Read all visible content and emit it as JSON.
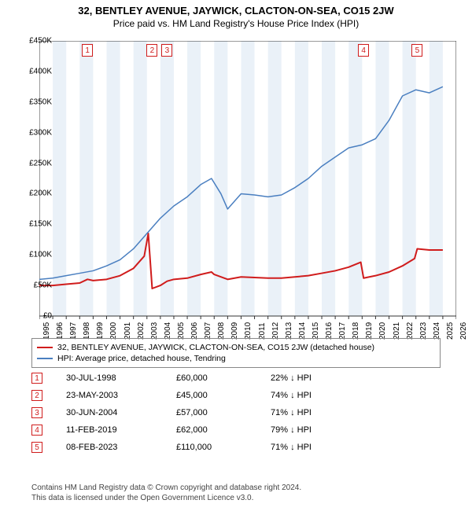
{
  "title": "32, BENTLEY AVENUE, JAYWICK, CLACTON-ON-SEA, CO15 2JW",
  "subtitle": "Price paid vs. HM Land Registry's House Price Index (HPI)",
  "chart": {
    "type": "line",
    "background_color": "#ffffff",
    "band_color": "#eaf1f8",
    "grid_color": "#f0f0f0",
    "axis_color": "#333333",
    "xlim": [
      1995,
      2026
    ],
    "ylim": [
      0,
      450000
    ],
    "ytick_step": 50000,
    "ytick_labels": [
      "£0",
      "£50K",
      "£100K",
      "£150K",
      "£200K",
      "£250K",
      "£300K",
      "£350K",
      "£400K",
      "£450K"
    ],
    "xtick_years": [
      1995,
      1996,
      1997,
      1998,
      1999,
      2000,
      2001,
      2002,
      2003,
      2004,
      2005,
      2006,
      2007,
      2008,
      2009,
      2010,
      2011,
      2012,
      2013,
      2014,
      2015,
      2016,
      2017,
      2018,
      2019,
      2020,
      2021,
      2022,
      2023,
      2024,
      2025,
      2026
    ],
    "series": [
      {
        "name": "property",
        "label": "32, BENTLEY AVENUE, JAYWICK, CLACTON-ON-SEA, CO15 2JW (detached house)",
        "color": "#d01c1c",
        "line_width": 2,
        "points": [
          [
            1995,
            50000
          ],
          [
            1996,
            50000
          ],
          [
            1997,
            52000
          ],
          [
            1998,
            54000
          ],
          [
            1998.58,
            60000
          ],
          [
            1999,
            58000
          ],
          [
            2000,
            60000
          ],
          [
            2001,
            66000
          ],
          [
            2002,
            78000
          ],
          [
            2002.8,
            98000
          ],
          [
            2003.1,
            135000
          ],
          [
            2003.39,
            45000
          ],
          [
            2004,
            50000
          ],
          [
            2004.5,
            57000
          ],
          [
            2005,
            60000
          ],
          [
            2006,
            62000
          ],
          [
            2007,
            68000
          ],
          [
            2007.8,
            72000
          ],
          [
            2008,
            68000
          ],
          [
            2009,
            60000
          ],
          [
            2010,
            64000
          ],
          [
            2011,
            63000
          ],
          [
            2012,
            62000
          ],
          [
            2013,
            62000
          ],
          [
            2014,
            64000
          ],
          [
            2015,
            66000
          ],
          [
            2016,
            70000
          ],
          [
            2017,
            74000
          ],
          [
            2018,
            80000
          ],
          [
            2018.9,
            88000
          ],
          [
            2019.11,
            62000
          ],
          [
            2020,
            66000
          ],
          [
            2021,
            72000
          ],
          [
            2022,
            82000
          ],
          [
            2022.9,
            94000
          ],
          [
            2023.1,
            110000
          ],
          [
            2024,
            108000
          ],
          [
            2025,
            108000
          ]
        ]
      },
      {
        "name": "hpi",
        "label": "HPI: Average price, detached house, Tendring",
        "color": "#4a7fc0",
        "line_width": 1.5,
        "points": [
          [
            1995,
            60000
          ],
          [
            1996,
            62000
          ],
          [
            1997,
            66000
          ],
          [
            1998,
            70000
          ],
          [
            1999,
            74000
          ],
          [
            2000,
            82000
          ],
          [
            2001,
            92000
          ],
          [
            2002,
            110000
          ],
          [
            2003,
            135000
          ],
          [
            2004,
            160000
          ],
          [
            2005,
            180000
          ],
          [
            2006,
            195000
          ],
          [
            2007,
            215000
          ],
          [
            2007.8,
            225000
          ],
          [
            2008.5,
            200000
          ],
          [
            2009,
            175000
          ],
          [
            2010,
            200000
          ],
          [
            2011,
            198000
          ],
          [
            2012,
            195000
          ],
          [
            2013,
            198000
          ],
          [
            2014,
            210000
          ],
          [
            2015,
            225000
          ],
          [
            2016,
            245000
          ],
          [
            2017,
            260000
          ],
          [
            2018,
            275000
          ],
          [
            2019,
            280000
          ],
          [
            2020,
            290000
          ],
          [
            2021,
            320000
          ],
          [
            2022,
            360000
          ],
          [
            2023,
            370000
          ],
          [
            2024,
            365000
          ],
          [
            2025,
            375000
          ]
        ]
      }
    ],
    "markers": [
      {
        "n": "1",
        "year": 1998.58,
        "color": "#d01c1c"
      },
      {
        "n": "2",
        "year": 2003.39,
        "color": "#d01c1c"
      },
      {
        "n": "3",
        "year": 2004.5,
        "color": "#d01c1c"
      },
      {
        "n": "4",
        "year": 2019.11,
        "color": "#d01c1c"
      },
      {
        "n": "5",
        "year": 2023.1,
        "color": "#d01c1c"
      }
    ]
  },
  "legend": {
    "items": [
      {
        "color": "#d01c1c",
        "label": "32, BENTLEY AVENUE, JAYWICK, CLACTON-ON-SEA, CO15 2JW (detached house)"
      },
      {
        "color": "#4a7fc0",
        "label": "HPI: Average price, detached house, Tendring"
      }
    ]
  },
  "events": [
    {
      "n": "1",
      "date": "30-JUL-1998",
      "price": "£60,000",
      "delta": "22% ↓ HPI",
      "color": "#d01c1c"
    },
    {
      "n": "2",
      "date": "23-MAY-2003",
      "price": "£45,000",
      "delta": "74% ↓ HPI",
      "color": "#d01c1c"
    },
    {
      "n": "3",
      "date": "30-JUN-2004",
      "price": "£57,000",
      "delta": "71% ↓ HPI",
      "color": "#d01c1c"
    },
    {
      "n": "4",
      "date": "11-FEB-2019",
      "price": "£62,000",
      "delta": "79% ↓ HPI",
      "color": "#d01c1c"
    },
    {
      "n": "5",
      "date": "08-FEB-2023",
      "price": "£110,000",
      "delta": "71% ↓ HPI",
      "color": "#d01c1c"
    }
  ],
  "footnote": {
    "line1": "Contains HM Land Registry data © Crown copyright and database right 2024.",
    "line2": "This data is licensed under the Open Government Licence v3.0."
  }
}
